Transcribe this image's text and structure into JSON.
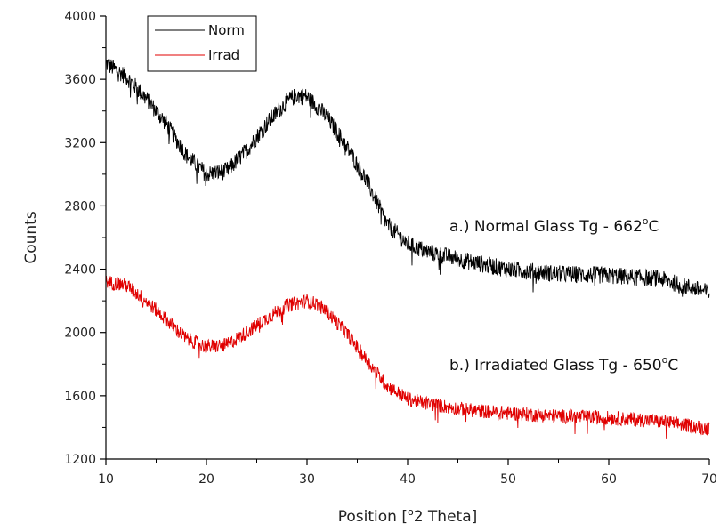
{
  "chart_data": {
    "type": "line",
    "xlabel_main": "Position [",
    "xlabel_sup": "o",
    "xlabel_rest": "2 Theta]",
    "ylabel": "Counts",
    "xlim": [
      10,
      70
    ],
    "ylim": [
      1200,
      4000
    ],
    "xticks": [
      "10",
      "20",
      "30",
      "40",
      "50",
      "60",
      "70"
    ],
    "yticks": [
      "1200",
      "1600",
      "2000",
      "2400",
      "2800",
      "3200",
      "3600",
      "4000"
    ],
    "grid": false,
    "legend_position": "top-left",
    "series": [
      {
        "name": "Norm",
        "color": "#000000",
        "x": [
          10,
          12,
          14,
          16,
          18,
          20,
          22,
          24,
          26,
          28,
          29,
          30,
          31,
          32,
          34,
          36,
          38,
          40,
          42,
          44,
          46,
          50,
          55,
          60,
          65,
          70
        ],
        "y": [
          3700,
          3620,
          3480,
          3320,
          3120,
          3000,
          3020,
          3150,
          3320,
          3460,
          3500,
          3490,
          3430,
          3360,
          3170,
          2950,
          2680,
          2560,
          2510,
          2480,
          2450,
          2400,
          2370,
          2360,
          2340,
          2250
        ]
      },
      {
        "name": "Irrad",
        "color": "#e00000",
        "x": [
          10,
          12,
          14,
          16,
          18,
          20,
          22,
          24,
          26,
          28,
          30,
          31,
          32,
          34,
          36,
          38,
          40,
          42,
          44,
          46,
          50,
          55,
          60,
          65,
          70
        ],
        "y": [
          2320,
          2300,
          2200,
          2080,
          1960,
          1910,
          1920,
          2000,
          2090,
          2170,
          2200,
          2180,
          2130,
          1990,
          1820,
          1660,
          1580,
          1550,
          1530,
          1510,
          1490,
          1470,
          1460,
          1440,
          1390
        ]
      }
    ],
    "annotations": [
      {
        "text": "a.) Normal Glass Tg - 662",
        "sup": "o",
        "unit": "C"
      },
      {
        "text": "b.) Irradiated Glass Tg - 650",
        "sup": "o",
        "unit": "C"
      }
    ]
  }
}
